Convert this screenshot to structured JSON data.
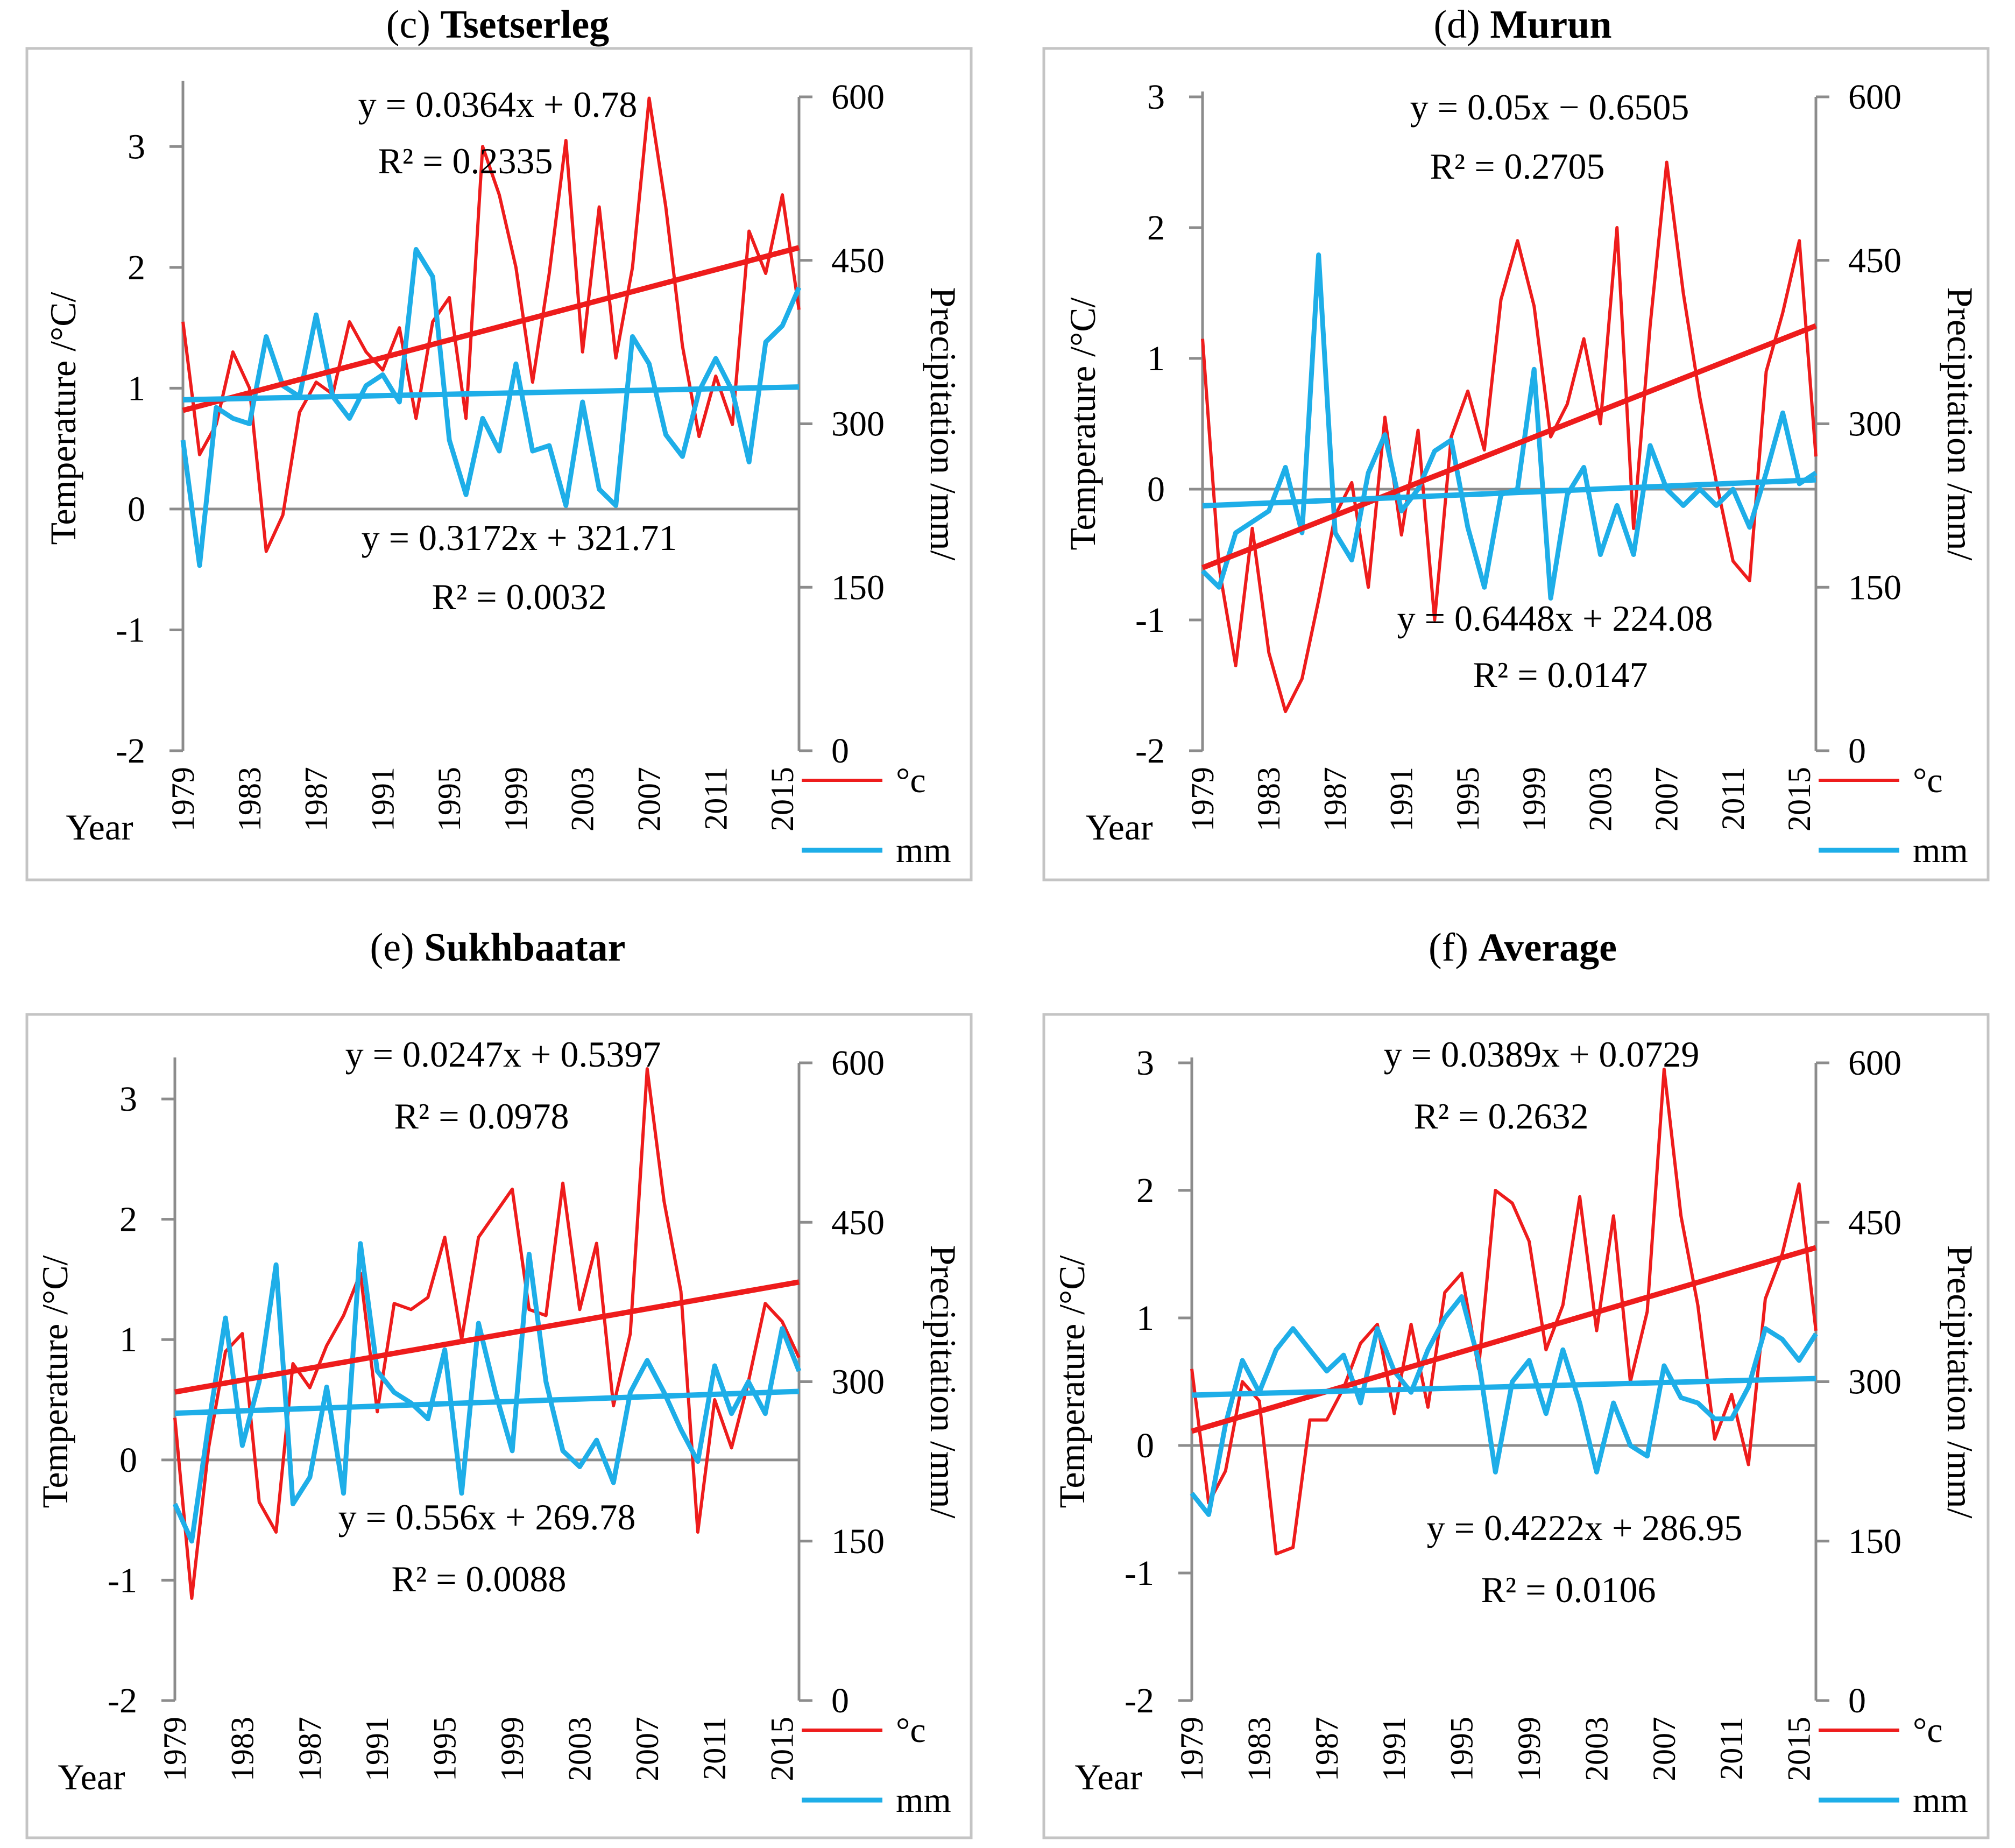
{
  "figure": {
    "x_axis_label": "Year",
    "legend": [
      {
        "label": "°c",
        "color": "#ee1c1c"
      },
      {
        "label": "mm",
        "color": "#1eaee8"
      }
    ],
    "colors": {
      "temperature": "#ee1c1c",
      "precipitation": "#1eaee8",
      "axis": "#8c8c8c",
      "frame": "#c4c4c4"
    }
  },
  "chart_data": [
    {
      "type": "line",
      "title_prefix": "(c)",
      "title_name": "Tsetserleg",
      "ylabel_left": "Temperature /°C/",
      "ylabel_right": "Precipitation /mm/",
      "x": [
        1979,
        1980,
        1981,
        1982,
        1983,
        1984,
        1985,
        1986,
        1987,
        1988,
        1989,
        1990,
        1991,
        1992,
        1993,
        1994,
        1995,
        1996,
        1997,
        1998,
        1999,
        2000,
        2001,
        2002,
        2003,
        2004,
        2005,
        2006,
        2007,
        2008,
        2009,
        2010,
        2011,
        2012,
        2013,
        2014,
        2015,
        2016
      ],
      "x_tick_labels": [
        "1979",
        "1983",
        "1987",
        "1991",
        "1995",
        "1999",
        "2003",
        "2007",
        "2011",
        "2015"
      ],
      "ylim_left": [
        -2,
        3.5
      ],
      "yticks_left": [
        -2,
        -1,
        0,
        1,
        2,
        3
      ],
      "ylim_right": [
        0,
        600
      ],
      "yticks_right": [
        0,
        150,
        300,
        450,
        600
      ],
      "series": [
        {
          "name": "°c",
          "axis": "left",
          "values": [
            1.55,
            0.45,
            0.7,
            1.3,
            1.0,
            -0.35,
            -0.05,
            0.8,
            1.05,
            0.95,
            1.55,
            1.3,
            1.15,
            1.5,
            0.75,
            1.55,
            1.75,
            0.75,
            3.0,
            2.6,
            2.0,
            1.05,
            1.95,
            3.05,
            1.3,
            2.5,
            1.25,
            2.0,
            3.4,
            2.5,
            1.35,
            0.6,
            1.1,
            0.7,
            2.3,
            1.95,
            2.6,
            1.65
          ]
        },
        {
          "name": "mm",
          "axis": "right",
          "values": [
            285,
            170,
            315,
            305,
            300,
            380,
            335,
            325,
            400,
            325,
            305,
            335,
            345,
            320,
            460,
            435,
            285,
            235,
            305,
            275,
            355,
            275,
            280,
            225,
            320,
            240,
            225,
            380,
            355,
            290,
            270,
            330,
            360,
            330,
            265,
            375,
            390,
            425
          ]
        }
      ],
      "trendlines": [
        {
          "series": "°c",
          "slope": 0.0364,
          "intercept": 0.78,
          "equation": "y = 0.0364x + 0.78",
          "r2": "R² = 0.2335"
        },
        {
          "series": "mm",
          "slope": 0.3172,
          "intercept": 321.71,
          "equation": "y = 0.3172x + 321.71",
          "r2": "R² = 0.0032"
        }
      ]
    },
    {
      "type": "line",
      "title_prefix": "(d)",
      "title_name": "Murun",
      "ylabel_left": "Temperature /°C/",
      "ylabel_right": "Precipitation /mm/",
      "x": [
        1979,
        1980,
        1981,
        1982,
        1983,
        1984,
        1985,
        1986,
        1987,
        1988,
        1989,
        1990,
        1991,
        1992,
        1993,
        1994,
        1995,
        1996,
        1997,
        1998,
        1999,
        2000,
        2001,
        2002,
        2003,
        2004,
        2005,
        2006,
        2007,
        2008,
        2009,
        2010,
        2011,
        2012,
        2013,
        2014,
        2015,
        2016
      ],
      "x_tick_labels": [
        "1979",
        "1983",
        "1987",
        "1991",
        "1995",
        "1999",
        "2003",
        "2007",
        "2011",
        "2015"
      ],
      "ylim_left": [
        -2,
        3
      ],
      "yticks_left": [
        -2,
        -1,
        0,
        1,
        2,
        3
      ],
      "ylim_right": [
        0,
        600
      ],
      "yticks_right": [
        0,
        150,
        300,
        450,
        600
      ],
      "series": [
        {
          "name": "°c",
          "axis": "left",
          "values": [
            1.15,
            -0.6,
            -1.35,
            -0.3,
            -1.25,
            -1.7,
            -1.45,
            -0.85,
            -0.2,
            0.05,
            -0.75,
            0.55,
            -0.35,
            0.45,
            -1.0,
            0.4,
            0.75,
            0.3,
            1.45,
            1.9,
            1.4,
            0.4,
            0.65,
            1.15,
            0.5,
            2.0,
            -0.3,
            1.25,
            2.5,
            1.5,
            0.7,
            0.05,
            -0.55,
            -0.7,
            0.9,
            1.35,
            1.9,
            0.25
          ]
        },
        {
          "name": "mm",
          "axis": "right",
          "values": [
            165,
            150,
            200,
            210,
            220,
            260,
            200,
            455,
            200,
            175,
            255,
            290,
            220,
            240,
            275,
            285,
            205,
            150,
            235,
            240,
            350,
            140,
            235,
            260,
            180,
            225,
            180,
            280,
            240,
            225,
            240,
            225,
            240,
            205,
            255,
            310,
            245,
            255
          ]
        }
      ],
      "trendlines": [
        {
          "series": "°c",
          "slope": 0.05,
          "intercept": -0.6505,
          "equation": "y = 0.05x − 0.6505",
          "r2": "R² = 0.2705"
        },
        {
          "series": "mm",
          "slope": 0.6448,
          "intercept": 224.08,
          "equation": "y = 0.6448x + 224.08",
          "r2": "R² = 0.0147"
        }
      ]
    },
    {
      "type": "line",
      "title_prefix": "(e)",
      "title_name": "Sukhbaatar",
      "ylabel_left": "Temperature /°C/",
      "ylabel_right": "Precipitation /mm/",
      "x": [
        1979,
        1980,
        1981,
        1982,
        1983,
        1984,
        1985,
        1986,
        1987,
        1988,
        1989,
        1990,
        1991,
        1992,
        1993,
        1994,
        1995,
        1996,
        1997,
        1998,
        1999,
        2000,
        2001,
        2002,
        2003,
        2004,
        2005,
        2006,
        2007,
        2008,
        2009,
        2010,
        2011,
        2012,
        2013,
        2014,
        2015,
        2016
      ],
      "x_tick_labels": [
        "1979",
        "1983",
        "1987",
        "1991",
        "1995",
        "1999",
        "2003",
        "2007",
        "2011",
        "2015"
      ],
      "ylim_left": [
        -2,
        3.3
      ],
      "yticks_left": [
        -2,
        -1,
        0,
        1,
        2,
        3
      ],
      "ylim_right": [
        0,
        600
      ],
      "yticks_right": [
        0,
        150,
        300,
        450,
        600
      ],
      "series": [
        {
          "name": "°c",
          "axis": "left",
          "values": [
            0.35,
            -1.15,
            0.1,
            0.9,
            1.05,
            -0.35,
            -0.6,
            0.8,
            0.6,
            0.95,
            1.2,
            1.55,
            0.4,
            1.3,
            1.25,
            1.35,
            1.85,
            1.0,
            1.85,
            2.05,
            2.25,
            1.25,
            1.2,
            2.3,
            1.25,
            1.8,
            0.45,
            1.05,
            3.25,
            2.15,
            1.4,
            -0.6,
            0.5,
            0.1,
            0.65,
            1.3,
            1.15,
            0.85
          ]
        },
        {
          "name": "mm",
          "axis": "right",
          "values": [
            185,
            150,
            260,
            360,
            240,
            300,
            410,
            185,
            210,
            295,
            195,
            430,
            310,
            290,
            280,
            265,
            330,
            195,
            355,
            290,
            235,
            420,
            300,
            235,
            220,
            245,
            205,
            290,
            320,
            290,
            255,
            225,
            315,
            270,
            300,
            270,
            350,
            310
          ]
        }
      ],
      "trendlines": [
        {
          "series": "°c",
          "slope": 0.0247,
          "intercept": 0.5397,
          "equation": "y = 0.0247x + 0.5397",
          "r2": "R² = 0.0978"
        },
        {
          "series": "mm",
          "slope": 0.556,
          "intercept": 269.78,
          "equation": "y = 0.556x + 269.78",
          "r2": "R² = 0.0088"
        }
      ]
    },
    {
      "type": "line",
      "title_prefix": "(f)",
      "title_name": "Average",
      "ylabel_left": "Temperature /°C/",
      "ylabel_right": "Precipitation /mm/",
      "x": [
        1979,
        1980,
        1981,
        1982,
        1983,
        1984,
        1985,
        1986,
        1987,
        1988,
        1989,
        1990,
        1991,
        1992,
        1993,
        1994,
        1995,
        1996,
        1997,
        1998,
        1999,
        2000,
        2001,
        2002,
        2003,
        2004,
        2005,
        2006,
        2007,
        2008,
        2009,
        2010,
        2011,
        2012,
        2013,
        2014,
        2015,
        2016
      ],
      "x_tick_labels": [
        "1979",
        "1983",
        "1987",
        "1991",
        "1995",
        "1999",
        "2003",
        "2007",
        "2011",
        "2015"
      ],
      "ylim_left": [
        -2,
        3
      ],
      "yticks_left": [
        -2,
        -1,
        0,
        1,
        2,
        3
      ],
      "ylim_right": [
        0,
        600
      ],
      "yticks_right": [
        0,
        150,
        300,
        450,
        600
      ],
      "series": [
        {
          "name": "°c",
          "axis": "left",
          "values": [
            0.6,
            -0.45,
            -0.2,
            0.5,
            0.35,
            -0.85,
            -0.8,
            0.2,
            0.2,
            0.45,
            0.8,
            0.95,
            0.25,
            0.95,
            0.3,
            1.2,
            1.35,
            0.6,
            2.0,
            1.9,
            1.6,
            0.75,
            1.1,
            1.95,
            0.9,
            1.8,
            0.5,
            1.05,
            2.95,
            1.8,
            1.1,
            0.05,
            0.4,
            -0.15,
            1.15,
            1.5,
            2.05,
            0.9
          ]
        },
        {
          "name": "mm",
          "axis": "right",
          "values": [
            195,
            175,
            260,
            320,
            290,
            330,
            350,
            330,
            310,
            325,
            280,
            350,
            310,
            290,
            330,
            360,
            380,
            320,
            215,
            300,
            320,
            270,
            330,
            280,
            215,
            280,
            240,
            230,
            315,
            285,
            280,
            265,
            265,
            295,
            350,
            340,
            320,
            345
          ]
        }
      ],
      "trendlines": [
        {
          "series": "°c",
          "slope": 0.0389,
          "intercept": 0.0729,
          "equation": "y = 0.0389x + 0.0729",
          "r2": "R² = 0.2632"
        },
        {
          "series": "mm",
          "slope": 0.4222,
          "intercept": 286.95,
          "equation": "y = 0.4222x + 286.95",
          "r2": "R² = 0.0106"
        }
      ]
    }
  ]
}
